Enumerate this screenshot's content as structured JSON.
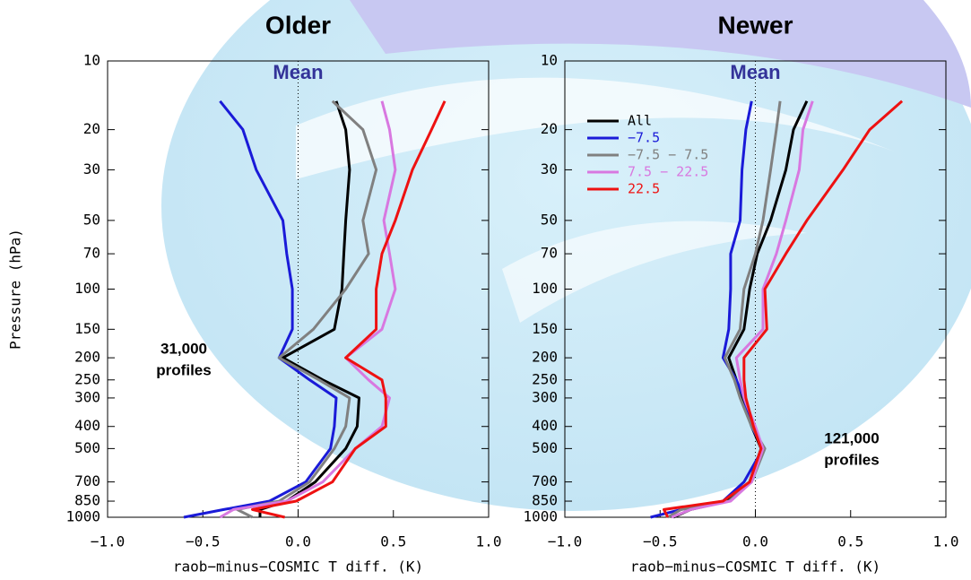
{
  "chart_data": [
    {
      "type": "line",
      "title": "Older",
      "annotation": "Mean",
      "note": [
        "31,000",
        "profiles"
      ],
      "x_label": "raob−minus−COSMIC T diff. (K)",
      "y_label": "Pressure (hPa)",
      "xlim": [
        -1,
        1
      ],
      "xticks": [
        {
          "value": -1,
          "label": "−1.0"
        },
        {
          "value": -0.5,
          "label": "−0.5"
        },
        {
          "value": 0,
          "label": "0.0"
        },
        {
          "value": 0.5,
          "label": "0.5"
        },
        {
          "value": 1,
          "label": "1.0"
        }
      ],
      "ylim": [
        1000,
        10
      ],
      "log_y": true,
      "yticks": [
        10,
        20,
        30,
        50,
        70,
        100,
        150,
        200,
        250,
        300,
        400,
        500,
        700,
        850,
        1000
      ],
      "ref_line": 0,
      "legend": false,
      "y": [
        15,
        20,
        30,
        50,
        70,
        100,
        150,
        200,
        250,
        300,
        400,
        500,
        700,
        850,
        925,
        1000
      ],
      "series": [
        {
          "name": "All",
          "color": "#000000",
          "values": [
            0.2,
            0.25,
            0.27,
            0.25,
            0.24,
            0.23,
            0.19,
            -0.08,
            0.13,
            0.32,
            0.31,
            0.25,
            0.09,
            -0.06,
            -0.2,
            -0.2
          ]
        },
        {
          "name": "−7.5",
          "color": "#1a1ad8",
          "values": [
            -0.41,
            -0.29,
            -0.22,
            -0.08,
            -0.06,
            -0.03,
            -0.03,
            -0.1,
            0.06,
            0.2,
            0.19,
            0.17,
            0.04,
            -0.15,
            -0.39,
            -0.6
          ]
        },
        {
          "name": "−7.5 − 7.5",
          "color": "#808080",
          "values": [
            0.18,
            0.34,
            0.41,
            0.34,
            0.37,
            0.25,
            0.08,
            -0.1,
            0.11,
            0.27,
            0.25,
            0.19,
            0.06,
            -0.1,
            -0.32,
            -0.24
          ]
        },
        {
          "name": "7.5 − 22.5",
          "color": "#d878e0",
          "values": [
            0.44,
            0.48,
            0.51,
            0.45,
            0.48,
            0.51,
            0.44,
            0.25,
            0.37,
            0.48,
            0.44,
            0.3,
            0.13,
            -0.06,
            -0.34,
            -0.41
          ]
        },
        {
          "name": "22.5",
          "color": "#ee1111",
          "values": [
            0.77,
            0.7,
            0.6,
            0.51,
            0.44,
            0.41,
            0.41,
            0.25,
            0.44,
            0.46,
            0.46,
            0.3,
            0.18,
            -0.01,
            -0.24,
            -0.07
          ]
        }
      ]
    },
    {
      "type": "line",
      "title": "Newer",
      "annotation": "Mean",
      "note": [
        "121,000",
        "profiles"
      ],
      "x_label": "raob−minus−COSMIC T diff. (K)",
      "xlim": [
        -1,
        1
      ],
      "xticks": [
        {
          "value": -1,
          "label": "−1.0"
        },
        {
          "value": -0.5,
          "label": "−0.5"
        },
        {
          "value": 0,
          "label": "0.0"
        },
        {
          "value": 0.5,
          "label": "0.5"
        },
        {
          "value": 1,
          "label": "1.0"
        }
      ],
      "ylim": [
        1000,
        10
      ],
      "log_y": true,
      "yticks": [
        10,
        20,
        30,
        50,
        70,
        100,
        150,
        200,
        250,
        300,
        400,
        500,
        700,
        850,
        1000
      ],
      "ref_line": 0,
      "legend": true,
      "y": [
        15,
        20,
        30,
        50,
        70,
        100,
        150,
        200,
        250,
        300,
        400,
        500,
        700,
        850,
        925,
        1000
      ],
      "series": [
        {
          "name": "All",
          "color": "#000000",
          "values": [
            0.27,
            0.2,
            0.16,
            0.08,
            0.01,
            -0.03,
            -0.06,
            -0.14,
            -0.1,
            -0.07,
            -0.02,
            0.03,
            -0.03,
            -0.15,
            -0.34,
            -0.43
          ]
        },
        {
          "name": "−7.5",
          "color": "#1a1ad8",
          "values": [
            -0.02,
            -0.05,
            -0.07,
            -0.08,
            -0.13,
            -0.13,
            -0.14,
            -0.17,
            -0.1,
            -0.06,
            -0.02,
            0.04,
            -0.06,
            -0.17,
            -0.39,
            -0.55
          ]
        },
        {
          "name": "−7.5 − 7.5",
          "color": "#808080",
          "values": [
            0.13,
            0.11,
            0.08,
            0.04,
            0.0,
            -0.06,
            -0.08,
            -0.16,
            -0.11,
            -0.08,
            -0.02,
            0.05,
            -0.02,
            -0.14,
            -0.39,
            -0.46
          ]
        },
        {
          "name": "7.5 − 22.5",
          "color": "#d878e0",
          "values": [
            0.3,
            0.25,
            0.23,
            0.16,
            0.11,
            0.04,
            0.04,
            -0.1,
            -0.08,
            -0.06,
            0.0,
            0.04,
            -0.02,
            -0.13,
            -0.34,
            -0.44
          ]
        },
        {
          "name": "22.5",
          "color": "#ee1111",
          "values": [
            0.77,
            0.6,
            0.46,
            0.27,
            0.16,
            0.05,
            0.06,
            -0.06,
            -0.06,
            -0.05,
            -0.01,
            0.03,
            -0.03,
            -0.17,
            -0.48,
            -0.46
          ]
        }
      ]
    }
  ]
}
